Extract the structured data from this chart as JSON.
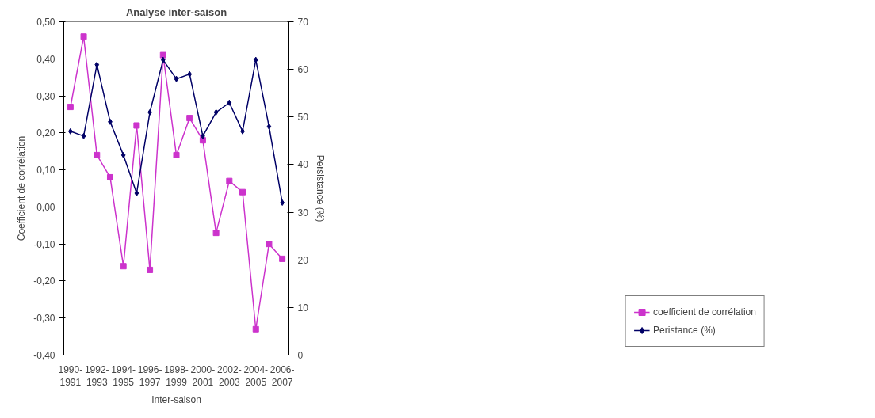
{
  "chart_data": {
    "type": "line",
    "title": "Analyse inter-saison",
    "xlabel": "Inter-saison",
    "ylabel": "Coefficient de corrélation",
    "y2label": "Persistance (%)",
    "categories": [
      "1990-\n1991",
      null,
      "1992-\n1993",
      null,
      "1994-\n1995",
      null,
      "1996-\n1997",
      null,
      "1998-\n1999",
      null,
      "2000-\n2001",
      null,
      "2002-\n2003",
      null,
      "2004-\n2005",
      null,
      "2006-\n2007"
    ],
    "series": [
      {
        "name": "coefficient de corrélation",
        "color": "#cc33cc",
        "marker": "square",
        "values": [
          0.27,
          0.46,
          0.14,
          0.08,
          -0.16,
          0.22,
          -0.17,
          0.41,
          0.14,
          0.24,
          0.18,
          -0.07,
          0.07,
          0.04,
          -0.33,
          -0.1,
          -0.14
        ]
      },
      {
        "name": "Peristance (%)",
        "color": "#000066",
        "marker": "diamond",
        "axis": "y2",
        "values": [
          47,
          46,
          61,
          49,
          42,
          34,
          51,
          62,
          58,
          59,
          46,
          51,
          53,
          47,
          62,
          48,
          32
        ]
      }
    ],
    "ylim": [
      -0.4,
      0.5
    ],
    "yticks": [
      {
        "value": -0.4,
        "label": "-0,40"
      },
      {
        "value": -0.3,
        "label": "-0,30"
      },
      {
        "value": -0.2,
        "label": "-0,20"
      },
      {
        "value": -0.1,
        "label": "-0,10"
      },
      {
        "value": 0,
        "label": "0,00"
      },
      {
        "value": 0.1,
        "label": "0,10"
      },
      {
        "value": 0.2,
        "label": "0,20"
      },
      {
        "value": 0.3,
        "label": "0,30"
      },
      {
        "value": 0.4,
        "label": "0,40"
      },
      {
        "value": 0.5,
        "label": "0,50"
      }
    ],
    "y2lim": [
      0,
      70
    ],
    "y2ticks": [
      0,
      10,
      20,
      30,
      40,
      50,
      60,
      70
    ],
    "grid": false,
    "legend": "right",
    "line_style": "solid"
  }
}
